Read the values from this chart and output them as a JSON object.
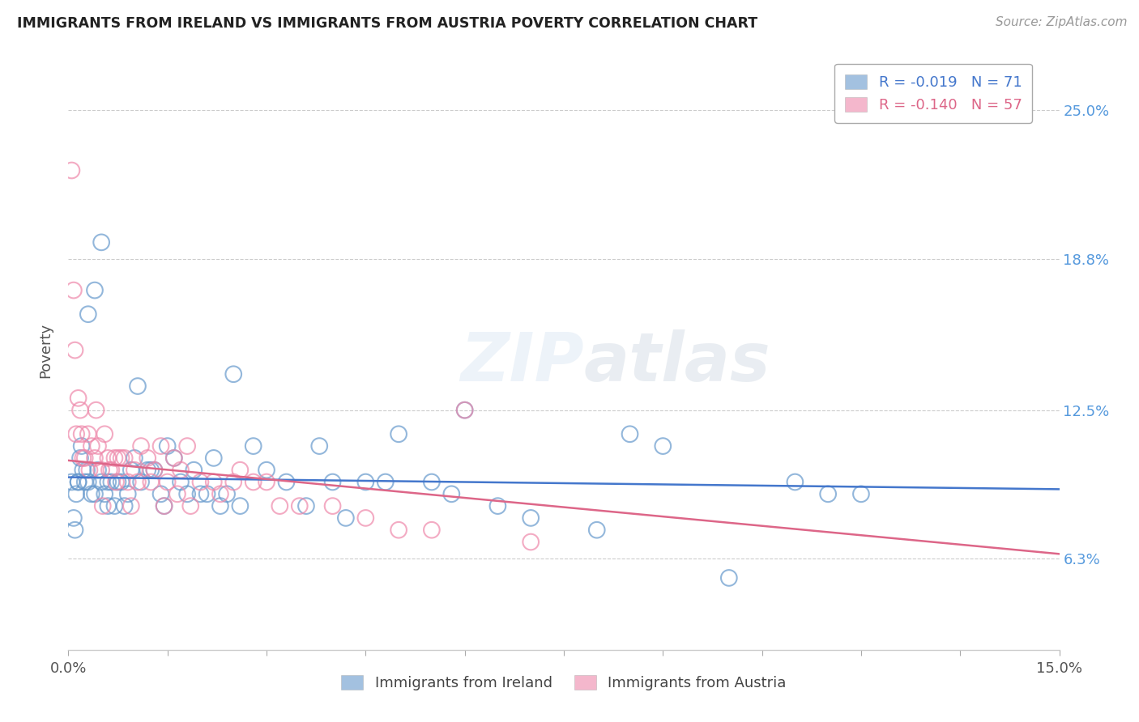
{
  "title": "IMMIGRANTS FROM IRELAND VS IMMIGRANTS FROM AUSTRIA POVERTY CORRELATION CHART",
  "source": "Source: ZipAtlas.com",
  "ylabel_label": "Poverty",
  "ytick_labels": [
    "6.3%",
    "12.5%",
    "18.8%",
    "25.0%"
  ],
  "ytick_values": [
    6.3,
    12.5,
    18.8,
    25.0
  ],
  "xmin": 0.0,
  "xmax": 15.0,
  "ymin": 2.5,
  "ymax": 27.5,
  "ireland_color": "#6699CC",
  "austria_color": "#EE88AA",
  "ireland_R": -0.019,
  "ireland_N": 71,
  "austria_R": -0.14,
  "austria_N": 57,
  "ireland_label": "Immigrants from Ireland",
  "austria_label": "Immigrants from Austria",
  "ireland_trend_start": 9.7,
  "ireland_trend_end": 9.2,
  "austria_trend_start": 10.4,
  "austria_trend_end": 6.5,
  "ireland_x": [
    0.05,
    0.08,
    0.1,
    0.12,
    0.15,
    0.18,
    0.2,
    0.22,
    0.25,
    0.28,
    0.3,
    0.35,
    0.4,
    0.45,
    0.5,
    0.55,
    0.6,
    0.65,
    0.7,
    0.8,
    0.9,
    1.0,
    1.1,
    1.2,
    1.3,
    1.4,
    1.5,
    1.6,
    1.7,
    1.8,
    1.9,
    2.0,
    2.1,
    2.2,
    2.3,
    2.4,
    2.5,
    2.6,
    2.8,
    3.0,
    3.3,
    3.6,
    3.8,
    4.0,
    4.2,
    4.5,
    5.0,
    5.5,
    6.0,
    6.5,
    7.0,
    8.0,
    8.5,
    9.0,
    10.0,
    11.0,
    11.5,
    12.0,
    0.15,
    0.3,
    0.4,
    0.5,
    0.6,
    0.75,
    0.85,
    0.95,
    1.05,
    1.25,
    1.45,
    4.8,
    5.8
  ],
  "ireland_y": [
    9.5,
    8.0,
    7.5,
    9.0,
    9.5,
    10.5,
    11.0,
    10.0,
    9.5,
    10.0,
    9.5,
    9.0,
    9.0,
    10.0,
    9.5,
    9.0,
    9.5,
    9.5,
    8.5,
    9.5,
    9.0,
    10.5,
    9.5,
    10.0,
    10.0,
    9.0,
    11.0,
    10.5,
    9.5,
    9.0,
    10.0,
    9.0,
    9.0,
    10.5,
    8.5,
    9.0,
    14.0,
    8.5,
    11.0,
    10.0,
    9.5,
    8.5,
    11.0,
    9.5,
    8.0,
    9.5,
    11.5,
    9.5,
    12.5,
    8.5,
    8.0,
    7.5,
    11.5,
    11.0,
    5.5,
    9.5,
    9.0,
    9.0,
    9.5,
    16.5,
    17.5,
    19.5,
    8.5,
    9.5,
    8.5,
    10.0,
    13.5,
    10.0,
    8.5,
    9.5,
    9.0
  ],
  "austria_x": [
    0.05,
    0.08,
    0.1,
    0.12,
    0.15,
    0.18,
    0.2,
    0.22,
    0.25,
    0.3,
    0.32,
    0.35,
    0.4,
    0.42,
    0.45,
    0.5,
    0.52,
    0.55,
    0.6,
    0.62,
    0.65,
    0.7,
    0.72,
    0.75,
    0.8,
    0.85,
    0.9,
    0.95,
    1.0,
    1.05,
    1.1,
    1.2,
    1.25,
    1.3,
    1.4,
    1.45,
    1.5,
    1.6,
    1.65,
    1.7,
    1.8,
    1.85,
    2.0,
    2.2,
    2.3,
    2.5,
    2.6,
    2.8,
    3.0,
    3.2,
    3.5,
    4.0,
    4.5,
    5.0,
    5.5,
    6.0,
    7.0
  ],
  "austria_y": [
    22.5,
    17.5,
    15.0,
    11.5,
    13.0,
    12.5,
    11.5,
    10.5,
    10.5,
    11.5,
    10.0,
    11.0,
    10.5,
    12.5,
    11.0,
    10.0,
    8.5,
    11.5,
    10.5,
    10.0,
    10.0,
    10.5,
    9.5,
    10.5,
    10.5,
    10.5,
    9.5,
    8.5,
    10.0,
    9.5,
    11.0,
    10.5,
    9.5,
    10.0,
    11.0,
    8.5,
    9.5,
    10.5,
    9.0,
    10.0,
    11.0,
    8.5,
    9.5,
    9.5,
    9.0,
    9.5,
    10.0,
    9.5,
    9.5,
    8.5,
    8.5,
    8.5,
    8.0,
    7.5,
    7.5,
    12.5,
    7.0
  ]
}
